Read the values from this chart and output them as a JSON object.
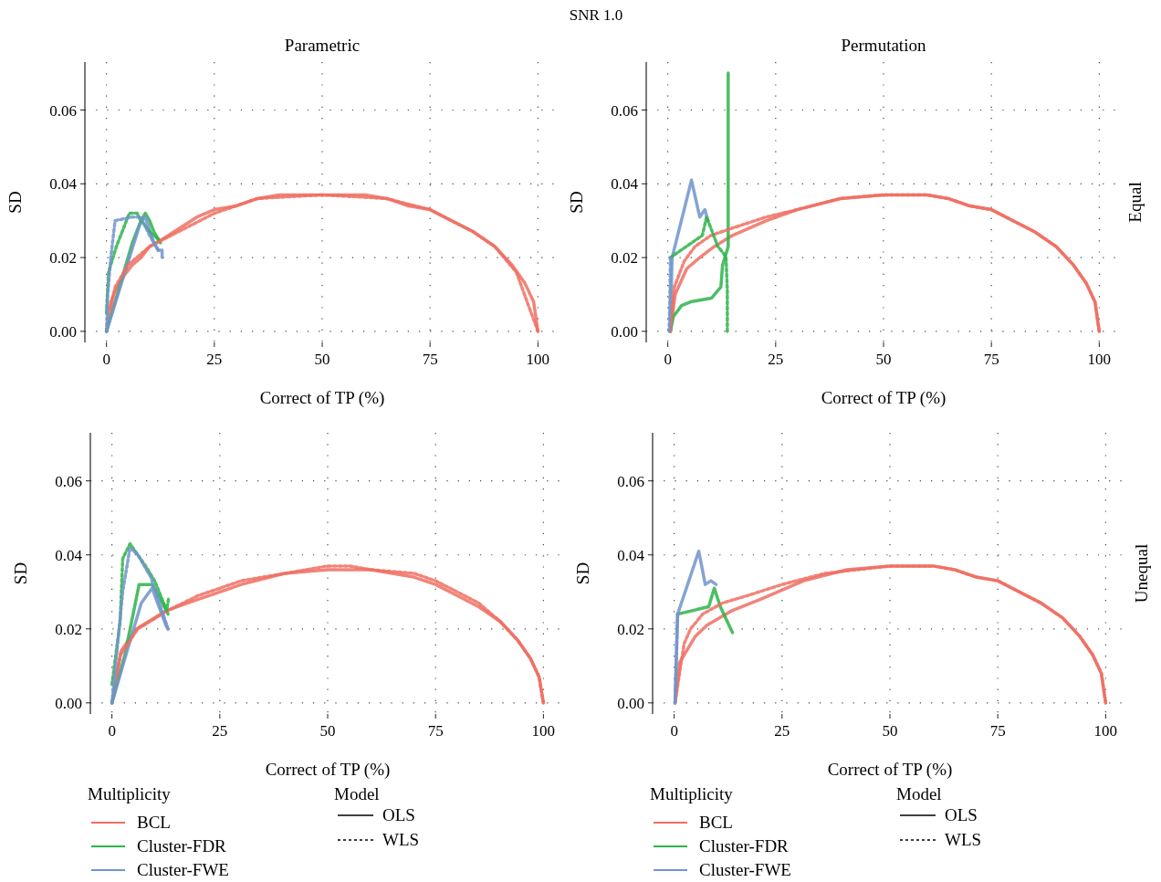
{
  "chart_data": [
    {
      "type": "line",
      "title": "Parametric",
      "xlabel": "Correct of TP (%)",
      "ylabel": "SD",
      "annotations": [
        "SNR 1.0"
      ],
      "xlim": [
        -5,
        105
      ],
      "ylim": [
        -0.003,
        0.073
      ],
      "xticks": [
        0,
        25,
        50,
        75,
        100
      ],
      "yticks": [
        {
          "value": 0,
          "label": "0.00"
        },
        {
          "value": 0.02,
          "label": "0.02"
        },
        {
          "value": 0.04,
          "label": "0.04"
        },
        {
          "value": 0.06,
          "label": "0.06"
        }
      ],
      "grid": true,
      "legend": false,
      "series": [
        {
          "color": "#ef6f62",
          "line_style": "solid",
          "x": [
            0,
            1,
            2,
            4,
            6,
            8,
            10,
            13,
            17,
            21,
            25,
            30,
            35,
            40,
            45,
            50,
            55,
            60,
            65,
            70,
            75,
            80,
            85,
            90,
            94,
            97,
            99,
            100
          ],
          "values": [
            0,
            0.008,
            0.011,
            0.015,
            0.018,
            0.02,
            0.023,
            0.025,
            0.028,
            0.031,
            0.033,
            0.034,
            0.036,
            0.037,
            0.037,
            0.037,
            0.037,
            0.037,
            0.036,
            0.034,
            0.033,
            0.03,
            0.027,
            0.023,
            0.018,
            0.013,
            0.008,
            0
          ]
        },
        {
          "color": "#ef6f62",
          "line_style": "dashed",
          "x": [
            1,
            2,
            5,
            10,
            15,
            20,
            25,
            35,
            50,
            65,
            75,
            85,
            90,
            95,
            100
          ],
          "values": [
            0.006,
            0.012,
            0.018,
            0.023,
            0.026,
            0.029,
            0.032,
            0.036,
            0.037,
            0.036,
            0.033,
            0.027,
            0.023,
            0.016,
            0
          ]
        },
        {
          "color": "#2db34a",
          "line_style": "solid",
          "x": [
            0,
            3,
            6,
            8,
            9,
            10,
            11,
            12,
            12.5
          ],
          "values": [
            0,
            0.012,
            0.024,
            0.03,
            0.032,
            0.03,
            0.027,
            0.025,
            0.024
          ]
        },
        {
          "color": "#2db34a",
          "line_style": "dashed",
          "x": [
            0,
            0.2,
            0.5,
            1,
            2.3,
            5.3,
            7.1,
            8,
            10,
            12
          ],
          "values": [
            0.005,
            0.01,
            0.016,
            0.018,
            0.023,
            0.032,
            0.032,
            0.03,
            0.027,
            0.025
          ]
        },
        {
          "color": "#7094cb",
          "line_style": "solid",
          "x": [
            0,
            4,
            8,
            9,
            11,
            12,
            12.9,
            12.9
          ],
          "values": [
            0,
            0.015,
            0.03,
            0.031,
            0.024,
            0.022,
            0.022,
            0.02
          ]
        },
        {
          "color": "#7094cb",
          "line_style": "dashed",
          "x": [
            0,
            0.3,
            1,
            2,
            6,
            8,
            10,
            12
          ],
          "values": [
            0,
            0.01,
            0.02,
            0.03,
            0.031,
            0.031,
            0.026,
            0.022
          ]
        }
      ]
    },
    {
      "type": "line",
      "title": "Permutation",
      "xlabel": "Correct of TP (%)",
      "ylabel": "SD",
      "y2label": "Equal",
      "xlim": [
        -5,
        105
      ],
      "ylim": [
        -0.003,
        0.073
      ],
      "xticks": [
        0,
        25,
        50,
        75,
        100
      ],
      "yticks": [
        {
          "value": 0,
          "label": "0.00"
        },
        {
          "value": 0.02,
          "label": "0.02"
        },
        {
          "value": 0.04,
          "label": "0.04"
        },
        {
          "value": 0.06,
          "label": "0.06"
        }
      ],
      "grid": true,
      "legend": false,
      "series": [
        {
          "color": "#ef6f62",
          "line_style": "solid",
          "x": [
            0.6,
            1.7,
            4.4,
            7.4,
            10.8,
            15,
            22.9,
            30,
            40,
            50,
            55,
            60,
            65,
            70,
            75,
            80,
            85,
            90,
            94,
            97,
            99,
            100
          ],
          "values": [
            0,
            0.01,
            0.017,
            0.02,
            0.023,
            0.026,
            0.03,
            0.033,
            0.036,
            0.037,
            0.037,
            0.037,
            0.036,
            0.034,
            0.033,
            0.03,
            0.027,
            0.023,
            0.018,
            0.013,
            0.008,
            0
          ]
        },
        {
          "color": "#ef6f62",
          "line_style": "dashed",
          "x": [
            0.6,
            1.5,
            3.8,
            6.3,
            10,
            15,
            22.8,
            30,
            40,
            50,
            55,
            60,
            65,
            70,
            75,
            80,
            85,
            90,
            94,
            97,
            99,
            100
          ],
          "values": [
            0,
            0.012,
            0.019,
            0.023,
            0.026,
            0.028,
            0.031,
            0.033,
            0.036,
            0.037,
            0.037,
            0.037,
            0.036,
            0.034,
            0.033,
            0.03,
            0.027,
            0.023,
            0.018,
            0.013,
            0.008,
            0
          ]
        },
        {
          "color": "#2db34a",
          "line_style": "solid",
          "x": [
            0.6,
            1.3,
            3.2,
            5.3,
            10.1,
            12.3,
            12.7,
            13.5,
            14,
            14,
            14
          ],
          "values": [
            0,
            0.004,
            0.007,
            0.008,
            0.009,
            0.012,
            0.018,
            0.021,
            0.023,
            0.045,
            0.07
          ]
        },
        {
          "color": "#2db34a",
          "line_style": "dashed",
          "x": [
            0.6,
            8,
            9,
            11.6,
            13,
            13.5,
            13.8,
            13.8
          ],
          "values": [
            0.02,
            0.026,
            0.031,
            0.023,
            0.021,
            0.02,
            0.011,
            0
          ]
        },
        {
          "color": "#7094cb",
          "line_style": "solid",
          "x": [
            0.6,
            1,
            5.5,
            7.4,
            8.6,
            9.3
          ],
          "values": [
            0,
            0.02,
            0.041,
            0.031,
            0.033,
            0.03
          ]
        },
        {
          "color": "#7094cb",
          "line_style": "dashed",
          "x": [
            0.3,
            0.5,
            0.6
          ],
          "values": [
            0,
            0.01,
            0.02
          ]
        }
      ]
    },
    {
      "type": "line",
      "xlabel": "Correct of TP (%)",
      "ylabel": "SD",
      "legend_title": [
        "Multiplicity",
        "Model"
      ],
      "xlim": [
        -5,
        105
      ],
      "ylim": [
        -0.003,
        0.073
      ],
      "xticks": [
        0,
        25,
        50,
        75,
        100
      ],
      "yticks": [
        {
          "value": 0,
          "label": "0.00"
        },
        {
          "value": 0.02,
          "label": "0.02"
        },
        {
          "value": 0.04,
          "label": "0.04"
        },
        {
          "value": 0.06,
          "label": "0.06"
        }
      ],
      "grid": true,
      "legend": "bottom",
      "series": [
        {
          "name": "BCL",
          "color": "#ef6f62",
          "line_style": "solid",
          "x": [
            0,
            2.1,
            5.7,
            12.7,
            20,
            30,
            40,
            50,
            60,
            70,
            75,
            80,
            85,
            90,
            94,
            97,
            99,
            100
          ],
          "values": [
            0,
            0.014,
            0.02,
            0.025,
            0.028,
            0.032,
            0.035,
            0.036,
            0.036,
            0.034,
            0.032,
            0.029,
            0.026,
            0.022,
            0.017,
            0.012,
            0.007,
            0
          ]
        },
        {
          "color": "#ef6f62",
          "line_style": "dashed",
          "x": [
            1,
            2,
            6,
            13,
            20,
            30,
            40,
            50,
            55,
            60,
            70,
            75,
            80,
            85,
            90,
            94,
            97,
            99,
            100
          ],
          "values": [
            0.007,
            0.013,
            0.02,
            0.025,
            0.029,
            0.033,
            0.035,
            0.037,
            0.037,
            0.036,
            0.035,
            0.033,
            0.03,
            0.027,
            0.022,
            0.017,
            0.012,
            0.007,
            0
          ]
        },
        {
          "name": "Cluster-FDR",
          "color": "#2db34a",
          "line_style": "solid",
          "x": [
            0,
            3,
            6.3,
            9.3,
            12.6,
            13
          ],
          "values": [
            0,
            0.013,
            0.032,
            0.032,
            0.025,
            0.024
          ]
        },
        {
          "color": "#2db34a",
          "line_style": "dashed",
          "x": [
            0,
            1.9,
            2.5,
            4.2,
            7.8,
            9.9,
            12.7,
            13.1
          ],
          "values": [
            0.005,
            0.022,
            0.039,
            0.043,
            0.037,
            0.033,
            0.025,
            0.028
          ]
        },
        {
          "name": "Cluster-FWE",
          "color": "#7094cb",
          "line_style": "solid",
          "x": [
            0,
            3,
            6.8,
            9.3,
            12.5,
            13
          ],
          "values": [
            0,
            0.012,
            0.027,
            0.031,
            0.021,
            0.02
          ]
        },
        {
          "color": "#7094cb",
          "line_style": "dashed",
          "x": [
            0,
            1.5,
            2.5,
            4.2,
            6,
            9,
            11,
            13
          ],
          "values": [
            0,
            0.018,
            0.03,
            0.042,
            0.04,
            0.034,
            0.027,
            0.02
          ]
        },
        {
          "name": "OLS",
          "color": "#000000",
          "line_style": "solid"
        },
        {
          "name": "WLS",
          "color": "#000000",
          "line_style": "dashed"
        }
      ]
    },
    {
      "type": "line",
      "xlabel": "Correct of TP (%)",
      "ylabel": "SD",
      "y2label": "Unequal",
      "legend_title": [
        "Multiplicity",
        "Model"
      ],
      "xlim": [
        -5,
        105
      ],
      "ylim": [
        -0.003,
        0.073
      ],
      "xticks": [
        0,
        25,
        50,
        75,
        100
      ],
      "yticks": [
        {
          "value": 0,
          "label": "0.00"
        },
        {
          "value": 0.02,
          "label": "0.02"
        },
        {
          "value": 0.04,
          "label": "0.04"
        },
        {
          "value": 0.06,
          "label": "0.06"
        }
      ],
      "grid": true,
      "legend": "bottom",
      "series": [
        {
          "name": "BCL",
          "color": "#ef6f62",
          "line_style": "solid",
          "x": [
            0.2,
            1.3,
            4.9,
            7.6,
            13.5,
            20,
            30,
            40,
            50,
            55,
            60,
            65,
            70,
            75,
            80,
            85,
            90,
            94,
            97,
            99,
            100
          ],
          "values": [
            0,
            0.011,
            0.018,
            0.021,
            0.025,
            0.028,
            0.033,
            0.036,
            0.037,
            0.037,
            0.037,
            0.036,
            0.034,
            0.033,
            0.03,
            0.027,
            0.023,
            0.018,
            0.013,
            0.008,
            0
          ]
        },
        {
          "color": "#ef6f62",
          "line_style": "dashed",
          "x": [
            0.2,
            2.3,
            3.8,
            6.6,
            11.2,
            17,
            25,
            35,
            50,
            55,
            60,
            65,
            70,
            75,
            80,
            85,
            90,
            94,
            97,
            99,
            100
          ],
          "values": [
            0,
            0.016,
            0.02,
            0.024,
            0.027,
            0.029,
            0.032,
            0.035,
            0.037,
            0.037,
            0.037,
            0.036,
            0.034,
            0.033,
            0.03,
            0.027,
            0.023,
            0.018,
            0.013,
            0.008,
            0
          ]
        },
        {
          "name": "Cluster-FDR",
          "color": "#2db34a",
          "line_style": "solid",
          "x": [
            0.8,
            8,
            9.3,
            10.7,
            13.5
          ],
          "values": [
            0.024,
            0.026,
            0.031,
            0.026,
            0.019
          ]
        },
        {
          "name": "Cluster-FWE",
          "color": "#7094cb",
          "line_style": "solid",
          "x": [
            0.2,
            0.8,
            5.7,
            7.2,
            8.5,
            9.7
          ],
          "values": [
            0,
            0.024,
            0.041,
            0.032,
            0.033,
            0.032
          ]
        },
        {
          "color": "#7094cb",
          "line_style": "dashed",
          "x": [
            0.2,
            0.5,
            0.8
          ],
          "values": [
            0,
            0.012,
            0.024
          ]
        },
        {
          "name": "OLS",
          "color": "#000000",
          "line_style": "solid"
        },
        {
          "name": "WLS",
          "color": "#000000",
          "line_style": "dashed"
        }
      ]
    }
  ]
}
